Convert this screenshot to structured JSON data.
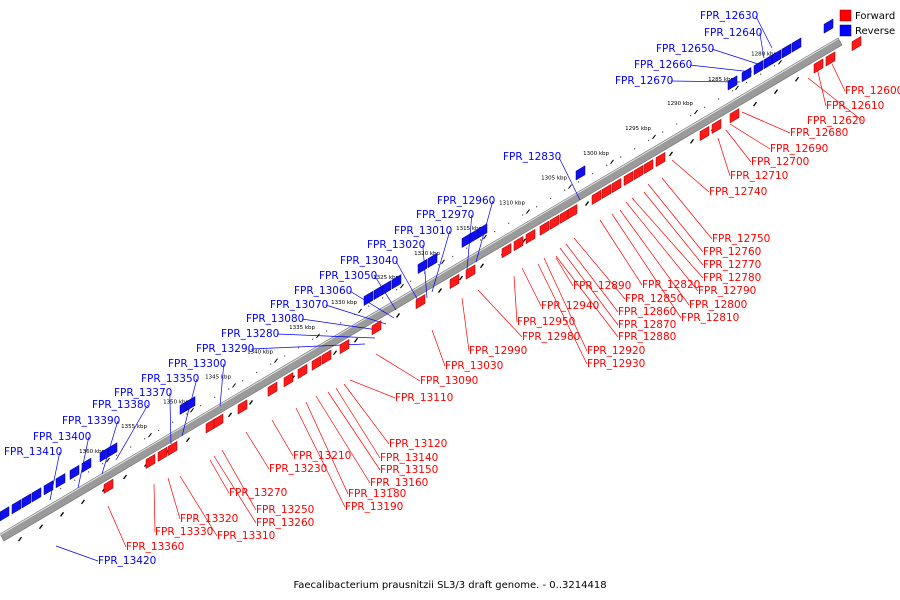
{
  "caption": "Faecalibacterium prausnitzii SL3/3 draft genome. - 0..3214418",
  "legend": [
    {
      "label": "Forward",
      "color": "#ff0000"
    },
    {
      "label": "Reverse",
      "color": "#0000ff"
    }
  ],
  "colors": {
    "forward": "#ff0000",
    "reverse": "#0000ff",
    "backbone": "#8a8a8a",
    "tick": "#000000"
  },
  "scale_ticks": [
    "1280 kbp",
    "1285 kbp",
    "1290 kbp",
    "1295 kbp",
    "1300 kbp",
    "1305 kbp",
    "1310 kbp",
    "1315 kbp",
    "1320 kbp",
    "1325 kbp",
    "1330 kbp",
    "1335 kbp",
    "1340 kbp",
    "1345 kbp",
    "1350 kbp",
    "1355 kbp",
    "1360 kbp"
  ],
  "forward_genes": [
    "FPR_12600",
    "FPR_12610",
    "FPR_12620",
    "FPR_12680",
    "FPR_12690",
    "FPR_12700",
    "FPR_12710",
    "FPR_12740",
    "FPR_12750",
    "FPR_12760",
    "FPR_12770",
    "FPR_12780",
    "FPR_12790",
    "FPR_12800",
    "FPR_12810",
    "FPR_12820",
    "FPR_12850",
    "FPR_12860",
    "FPR_12870",
    "FPR_12880",
    "FPR_12890",
    "FPR_12920",
    "FPR_12930",
    "FPR_12940",
    "FPR_12950",
    "FPR_12980",
    "FPR_12990",
    "FPR_13030",
    "FPR_13090",
    "FPR_13110",
    "FPR_13120",
    "FPR_13140",
    "FPR_13150",
    "FPR_13160",
    "FPR_13180",
    "FPR_13190",
    "FPR_13210",
    "FPR_13230",
    "FPR_13250",
    "FPR_13260",
    "FPR_13270",
    "FPR_13310",
    "FPR_13320",
    "FPR_13330",
    "FPR_13360"
  ],
  "reverse_genes": [
    "FPR_12630",
    "FPR_12640",
    "FPR_12650",
    "FPR_12660",
    "FPR_12670",
    "FPR_12830",
    "FPR_12960",
    "FPR_12970",
    "FPR_13010",
    "FPR_13020",
    "FPR_13040",
    "FPR_13050",
    "FPR_13060",
    "FPR_13070",
    "FPR_13080",
    "FPR_13280",
    "FPR_13290",
    "FPR_13300",
    "FPR_13350",
    "FPR_13370",
    "FPR_13380",
    "FPR_13390",
    "FPR_13400",
    "FPR_13410",
    "FPR_13420"
  ]
}
